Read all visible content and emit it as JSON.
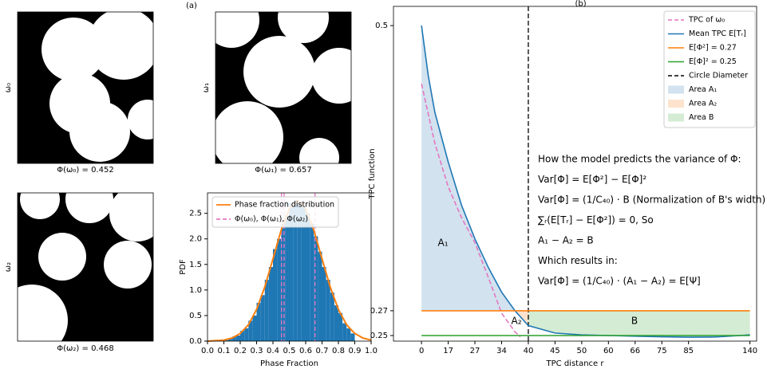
{
  "panel_labels": [
    "(a)",
    "(b)"
  ],
  "images": [
    {
      "label": "ω₀",
      "caption": "Φ(ω₀) = 0.452"
    },
    {
      "label": "ω₁",
      "caption": "Φ(ω₁) = 0.657"
    },
    {
      "label": "ω₂",
      "caption": "Φ(ω₂) = 0.468"
    }
  ],
  "chart_data": [
    {
      "type": "histogram",
      "xlabel": "Phase Fraction",
      "ylabel": "PDF",
      "color": "#1f77b4",
      "bins": [
        0.1,
        0.125,
        0.15,
        0.175,
        0.2,
        0.225,
        0.25,
        0.275,
        0.3,
        0.325,
        0.35,
        0.375,
        0.4,
        0.425,
        0.45,
        0.475,
        0.5,
        0.525,
        0.55,
        0.575,
        0.6,
        0.625,
        0.65,
        0.675,
        0.7,
        0.725,
        0.75,
        0.775,
        0.8,
        0.825,
        0.85,
        0.875,
        0.9
      ],
      "values": [
        0.02,
        0.05,
        0.09,
        0.11,
        0.2,
        0.25,
        0.4,
        0.5,
        0.75,
        0.9,
        1.2,
        1.45,
        1.8,
        2.0,
        2.3,
        2.45,
        2.7,
        2.75,
        2.7,
        2.65,
        2.5,
        2.3,
        2.05,
        1.75,
        1.45,
        1.2,
        0.95,
        0.7,
        0.55,
        0.35,
        0.25,
        0.15
      ],
      "curve": {
        "name": "Phase fraction distribution",
        "color": "#ff7f0e",
        "x": [
          0,
          0.05,
          0.1,
          0.15,
          0.2,
          0.25,
          0.3,
          0.35,
          0.4,
          0.45,
          0.5,
          0.55,
          0.6,
          0.65,
          0.7,
          0.75,
          0.8,
          0.85,
          0.9,
          0.95,
          1.0
        ],
        "values": [
          0.0,
          0.01,
          0.02,
          0.06,
          0.15,
          0.32,
          0.62,
          1.06,
          1.61,
          2.17,
          2.59,
          2.75,
          2.59,
          2.17,
          1.61,
          1.06,
          0.62,
          0.32,
          0.15,
          0.06,
          0.02
        ]
      },
      "vlines": {
        "name": "Φ(ω₀), Φ(ω₁), Φ(ω₂)",
        "color": "#e377c2",
        "values": [
          0.452,
          0.657,
          0.468
        ]
      },
      "xlim": [
        0,
        1
      ],
      "xticks": [
        {
          "value": 0,
          "label": "0.0"
        },
        0.1,
        0.2,
        0.3,
        0.4,
        0.5,
        0.6,
        0.7,
        0.8,
        0.9,
        {
          "value": 1,
          "label": "1.0"
        }
      ],
      "ylim": [
        0,
        2.9
      ],
      "yticks": [
        {
          "value": 0,
          "label": "0.0"
        },
        0.5,
        {
          "value": 1,
          "label": "1.0"
        },
        1.5,
        {
          "value": 2,
          "label": "2.0"
        },
        2.5
      ]
    },
    {
      "type": "line",
      "title": "(b)",
      "xlabel": "TPC distance r",
      "ylabel": "TPC function",
      "series": [
        {
          "name": "TPC of ω₀",
          "color": "#e377c2",
          "dashed": true,
          "x": [
            0,
            0.5,
            1,
            1.5,
            2,
            2.5,
            3,
            3.5,
            3.7
          ],
          "values": [
            0.453,
            0.405,
            0.37,
            0.345,
            0.325,
            0.297,
            0.268,
            0.253,
            0.249
          ]
        },
        {
          "name": "Mean TPC E[Tᵣ]",
          "color": "#1f77b4",
          "x": [
            0,
            0.25,
            0.5,
            1,
            1.5,
            2,
            2.5,
            3,
            3.5,
            4,
            5,
            6,
            7,
            8,
            9,
            10,
            11,
            12.3
          ],
          "values": [
            0.5,
            0.46,
            0.43,
            0.39,
            0.355,
            0.328,
            0.305,
            0.285,
            0.27,
            0.258,
            0.252,
            0.2505,
            0.25,
            0.2495,
            0.249,
            0.2487,
            0.2488,
            0.2505
          ]
        },
        {
          "name": "E[Φ²] = 0.27",
          "color": "#ff7f0e",
          "x": [
            0,
            12.3
          ],
          "values": [
            0.27,
            0.27
          ]
        },
        {
          "name": "E[Φ]² = 0.25",
          "color": "#2ca02c",
          "x": [
            0,
            12.3
          ],
          "values": [
            0.25,
            0.25
          ]
        }
      ],
      "vlines": [
        {
          "name": "Circle Diameter",
          "color": "#000000",
          "value": 4
        }
      ],
      "areas": [
        {
          "name": "Area A₁",
          "label": "A₁",
          "color": "#d2e2ef"
        },
        {
          "name": "Area A₂",
          "label": "A₂",
          "color": "#fde3cd"
        },
        {
          "name": "Area B",
          "label": "B",
          "color": "#d3ecd3"
        }
      ],
      "notes": [
        "How the model predicts the variance of Φ:",
        "Var[Φ] = E[Φ²] − E[Φ]²",
        "Var[Φ] = (1/C₄₀) · B (Normalization of B's width)",
        "∑ᵣ(E[Tᵣ] − E[Φ²]) = 0, So",
        "A₁ − A₂ = B",
        "Which results in:",
        "Var[Φ] = (1/C₄₀) · (A₁ − A₂) = E[Ψ]"
      ],
      "xlim": [
        -1.05,
        12.55
      ],
      "xticks": [
        {
          "value": 0,
          "label": "0"
        },
        {
          "value": 1,
          "label": "17"
        },
        {
          "value": 2,
          "label": "27"
        },
        {
          "value": 3,
          "label": "34"
        },
        {
          "value": 4,
          "label": "40"
        },
        {
          "value": 5,
          "label": "45"
        },
        {
          "value": 6,
          "label": "50"
        },
        {
          "value": 7,
          "label": "60"
        },
        {
          "value": 8,
          "label": "66"
        },
        {
          "value": 9,
          "label": "75"
        },
        {
          "value": 10,
          "label": "85"
        },
        {
          "value": 12.3,
          "label": "140"
        }
      ],
      "ylim": [
        0.2455,
        0.5155
      ],
      "yticks": [
        0.25,
        0.27,
        0.5
      ]
    }
  ]
}
